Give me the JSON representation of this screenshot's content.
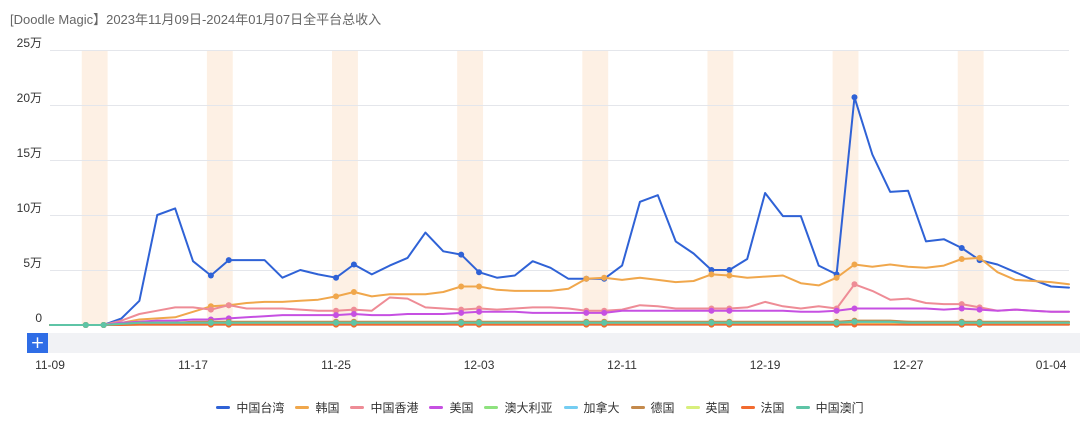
{
  "zoom": {
    "button_label": "+"
  },
  "chart_data": {
    "type": "line",
    "title": "[Doodle Magic】2023年11月09日-2024年01月07日全平台总收入",
    "x": [
      "11-09",
      "11-10",
      "11-11",
      "11-12",
      "11-13",
      "11-14",
      "11-15",
      "11-16",
      "11-17",
      "11-18",
      "11-19",
      "11-20",
      "11-21",
      "11-22",
      "11-23",
      "11-24",
      "11-25",
      "11-26",
      "11-27",
      "11-28",
      "11-29",
      "11-30",
      "12-01",
      "12-02",
      "12-03",
      "12-04",
      "12-05",
      "12-06",
      "12-07",
      "12-08",
      "12-09",
      "12-10",
      "12-11",
      "12-12",
      "12-13",
      "12-14",
      "12-15",
      "12-16",
      "12-17",
      "12-18",
      "12-19",
      "12-20",
      "12-21",
      "12-22",
      "12-23",
      "12-24",
      "12-25",
      "12-26",
      "12-27",
      "12-28",
      "12-29",
      "12-30",
      "12-31",
      "01-01",
      "01-02",
      "01-03",
      "01-04",
      "01-05"
    ],
    "x_tick_labels": [
      "11-09",
      "11-17",
      "11-25",
      "12-03",
      "12-11",
      "12-19",
      "12-27",
      "01-04"
    ],
    "ylim": [
      0,
      25
    ],
    "y_ticks": [
      0,
      5,
      10,
      15,
      20,
      25
    ],
    "y_tick_labels": [
      "0",
      "5万",
      "10万",
      "15万",
      "20万",
      "25万"
    ],
    "grid": true,
    "legend_position": "bottom",
    "highlight_color": "#fdf0e4",
    "weekend_highlights": [
      [
        "11-11",
        "11-12"
      ],
      [
        "11-18",
        "11-19"
      ],
      [
        "11-25",
        "11-26"
      ],
      [
        "12-02",
        "12-03"
      ],
      [
        "12-09",
        "12-10"
      ],
      [
        "12-16",
        "12-17"
      ],
      [
        "12-23",
        "12-24"
      ],
      [
        "12-30",
        "12-31"
      ]
    ],
    "series": [
      {
        "name": "中国台湾",
        "color": "#2f62d6",
        "values": [
          0,
          0,
          0,
          0,
          0.6,
          2.2,
          10.0,
          10.6,
          5.8,
          4.5,
          5.9,
          5.9,
          5.9,
          4.3,
          5.0,
          4.6,
          4.3,
          5.5,
          4.6,
          5.4,
          6.1,
          8.4,
          6.7,
          6.4,
          4.8,
          4.3,
          4.5,
          5.8,
          5.2,
          4.2,
          4.2,
          4.2,
          5.4,
          11.2,
          11.8,
          7.6,
          6.5,
          5.0,
          5.0,
          6.0,
          12.0,
          9.9,
          9.9,
          5.4,
          4.6,
          20.7,
          15.5,
          12.1,
          12.2,
          7.6,
          7.8,
          7.0,
          5.9,
          5.5,
          4.8,
          4.1,
          3.5,
          3.4
        ]
      },
      {
        "name": "韩国",
        "color": "#f0a74c",
        "values": [
          0,
          0,
          0,
          0,
          0.2,
          0.5,
          0.6,
          0.7,
          1.2,
          1.7,
          1.8,
          2.0,
          2.1,
          2.1,
          2.2,
          2.3,
          2.6,
          3.0,
          2.6,
          2.8,
          2.8,
          2.8,
          3.0,
          3.5,
          3.5,
          3.2,
          3.1,
          3.1,
          3.1,
          3.3,
          4.2,
          4.3,
          4.1,
          4.3,
          4.1,
          3.9,
          4.0,
          4.6,
          4.5,
          4.3,
          4.4,
          4.5,
          3.8,
          3.6,
          4.3,
          5.5,
          5.3,
          5.5,
          5.3,
          5.2,
          5.4,
          6.0,
          6.1,
          4.8,
          4.1,
          4.0,
          3.9,
          3.7
        ]
      },
      {
        "name": "中国香港",
        "color": "#ee8c96",
        "values": [
          0,
          0,
          0,
          0,
          0.4,
          1.0,
          1.3,
          1.6,
          1.6,
          1.4,
          1.8,
          1.5,
          1.5,
          1.5,
          1.4,
          1.3,
          1.3,
          1.4,
          1.3,
          2.5,
          2.4,
          1.6,
          1.5,
          1.4,
          1.5,
          1.4,
          1.5,
          1.6,
          1.6,
          1.5,
          1.3,
          1.3,
          1.4,
          1.8,
          1.7,
          1.5,
          1.5,
          1.5,
          1.5,
          1.6,
          2.1,
          1.7,
          1.5,
          1.7,
          1.5,
          3.7,
          3.1,
          2.3,
          2.4,
          2.0,
          1.9,
          1.9,
          1.6,
          1.3,
          1.4,
          1.3,
          1.2,
          1.2
        ]
      },
      {
        "name": "美国",
        "color": "#c650e2",
        "values": [
          0,
          0,
          0,
          0,
          0.2,
          0.3,
          0.4,
          0.4,
          0.5,
          0.5,
          0.6,
          0.7,
          0.8,
          0.9,
          0.9,
          0.9,
          0.9,
          1.0,
          0.9,
          0.9,
          1.0,
          1.0,
          1.0,
          1.1,
          1.2,
          1.2,
          1.2,
          1.1,
          1.1,
          1.1,
          1.1,
          1.1,
          1.3,
          1.3,
          1.3,
          1.3,
          1.3,
          1.3,
          1.3,
          1.3,
          1.3,
          1.3,
          1.2,
          1.2,
          1.3,
          1.5,
          1.5,
          1.5,
          1.5,
          1.5,
          1.4,
          1.5,
          1.4,
          1.3,
          1.4,
          1.3,
          1.2,
          1.2
        ]
      },
      {
        "name": "澳大利亚",
        "color": "#8ee27e",
        "values": [
          0,
          0,
          0,
          0,
          0.1,
          0.1,
          0.2,
          0.2,
          0.2,
          0.2,
          0.2,
          0.2,
          0.2,
          0.2,
          0.2,
          0.2,
          0.2,
          0.2,
          0.2,
          0.2,
          0.2,
          0.2,
          0.2,
          0.2,
          0.2,
          0.2,
          0.2,
          0.2,
          0.2,
          0.2,
          0.2,
          0.2,
          0.2,
          0.2,
          0.2,
          0.2,
          0.2,
          0.2,
          0.2,
          0.2,
          0.2,
          0.2,
          0.2,
          0.2,
          0.2,
          0.3,
          0.3,
          0.3,
          0.3,
          0.2,
          0.2,
          0.2,
          0.2,
          0.2,
          0.2,
          0.2,
          0.2,
          0.2
        ]
      },
      {
        "name": "加拿大",
        "color": "#74cdf2",
        "values": [
          0,
          0,
          0,
          0,
          0.1,
          0.1,
          0.1,
          0.1,
          0.1,
          0.1,
          0.1,
          0.1,
          0.1,
          0.1,
          0.1,
          0.1,
          0.1,
          0.1,
          0.1,
          0.1,
          0.1,
          0.1,
          0.1,
          0.1,
          0.1,
          0.1,
          0.1,
          0.1,
          0.1,
          0.1,
          0.1,
          0.1,
          0.1,
          0.1,
          0.1,
          0.1,
          0.1,
          0.1,
          0.1,
          0.1,
          0.1,
          0.1,
          0.1,
          0.1,
          0.1,
          0.2,
          0.2,
          0.2,
          0.1,
          0.1,
          0.1,
          0.1,
          0.1,
          0.1,
          0.1,
          0.1,
          0.1,
          0.1
        ]
      },
      {
        "name": "德国",
        "color": "#c48a4c",
        "values": [
          0,
          0,
          0,
          0,
          0.1,
          0.2,
          0.2,
          0.2,
          0.3,
          0.3,
          0.3,
          0.3,
          0.3,
          0.3,
          0.3,
          0.3,
          0.3,
          0.3,
          0.3,
          0.3,
          0.3,
          0.3,
          0.3,
          0.3,
          0.3,
          0.3,
          0.3,
          0.3,
          0.3,
          0.3,
          0.3,
          0.3,
          0.3,
          0.3,
          0.3,
          0.3,
          0.3,
          0.3,
          0.3,
          0.3,
          0.3,
          0.3,
          0.3,
          0.3,
          0.3,
          0.4,
          0.4,
          0.4,
          0.3,
          0.3,
          0.3,
          0.3,
          0.3,
          0.3,
          0.3,
          0.3,
          0.3,
          0.3
        ]
      },
      {
        "name": "英国",
        "color": "#d8ef7c",
        "values": [
          0,
          0,
          0,
          0,
          0,
          0.05,
          0.05,
          0.05,
          0.05,
          0.05,
          0.05,
          0.05,
          0.05,
          0.05,
          0.05,
          0.05,
          0.05,
          0.05,
          0.05,
          0.05,
          0.05,
          0.05,
          0.05,
          0.05,
          0.05,
          0.05,
          0.05,
          0.05,
          0.05,
          0.05,
          0.05,
          0.05,
          0.05,
          0.05,
          0.05,
          0.05,
          0.05,
          0.05,
          0.05,
          0.05,
          0.05,
          0.05,
          0.05,
          0.05,
          0.05,
          0.1,
          0.1,
          0.1,
          0.05,
          0.05,
          0.05,
          0.05,
          0.05,
          0.05,
          0.05,
          0.05,
          0.05,
          0.05
        ]
      },
      {
        "name": "法国",
        "color": "#f26b2f",
        "values": [
          0,
          0,
          0,
          0,
          0,
          0.03,
          0.03,
          0.03,
          0.03,
          0.03,
          0.03,
          0.03,
          0.03,
          0.03,
          0.03,
          0.03,
          0.03,
          0.03,
          0.03,
          0.03,
          0.03,
          0.03,
          0.03,
          0.03,
          0.03,
          0.03,
          0.03,
          0.03,
          0.03,
          0.03,
          0.03,
          0.03,
          0.03,
          0.03,
          0.03,
          0.03,
          0.03,
          0.03,
          0.03,
          0.03,
          0.03,
          0.03,
          0.03,
          0.03,
          0.03,
          0.05,
          0.05,
          0.05,
          0.03,
          0.03,
          0.03,
          0.03,
          0.03,
          0.03,
          0.03,
          0.03,
          0.03,
          0.03
        ]
      },
      {
        "name": "中国澳门",
        "color": "#5ec4a6",
        "values": [
          0,
          0,
          0,
          0,
          0.1,
          0.2,
          0.2,
          0.2,
          0.2,
          0.2,
          0.2,
          0.2,
          0.2,
          0.2,
          0.2,
          0.2,
          0.2,
          0.2,
          0.2,
          0.2,
          0.2,
          0.2,
          0.2,
          0.2,
          0.2,
          0.2,
          0.2,
          0.2,
          0.2,
          0.2,
          0.2,
          0.2,
          0.2,
          0.2,
          0.2,
          0.2,
          0.2,
          0.2,
          0.2,
          0.2,
          0.2,
          0.2,
          0.2,
          0.2,
          0.2,
          0.3,
          0.3,
          0.3,
          0.2,
          0.2,
          0.2,
          0.2,
          0.2,
          0.2,
          0.2,
          0.2,
          0.2,
          0.2
        ]
      }
    ]
  }
}
